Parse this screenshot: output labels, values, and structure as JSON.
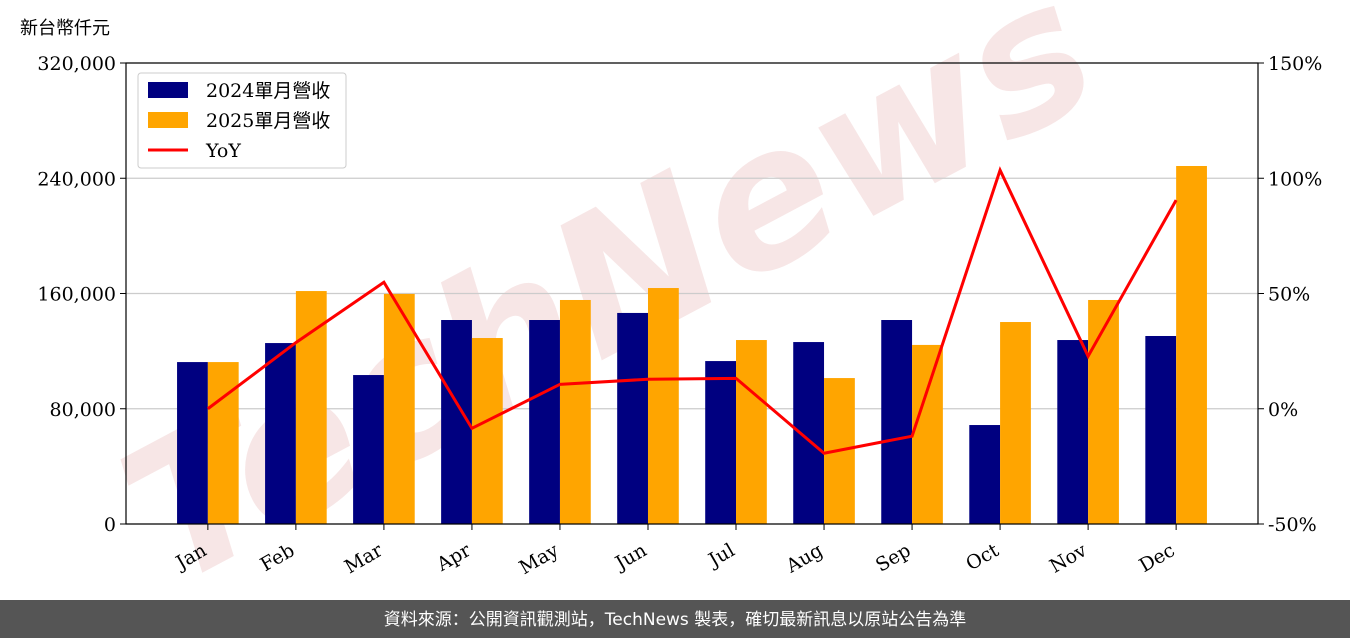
{
  "chart_data": {
    "type": "bar_line",
    "y_label": "新台幣仟元",
    "categories": [
      "Jan",
      "Feb",
      "Mar",
      "Apr",
      "May",
      "Jun",
      "Jul",
      "Aug",
      "Sep",
      "Oct",
      "Nov",
      "Dec"
    ],
    "series": [
      {
        "name": "2024單月營收",
        "color": "#000080",
        "type": "bar",
        "values": [
          112400,
          125600,
          103400,
          141600,
          141600,
          146500,
          113100,
          126300,
          141600,
          68700,
          127700,
          130500
        ]
      },
      {
        "name": "2025單月營收",
        "color": "#ffa500",
        "type": "bar",
        "values": [
          112400,
          161700,
          159700,
          129100,
          155500,
          163800,
          127700,
          101300,
          124300,
          140200,
          155500,
          248500
        ]
      },
      {
        "name": "YoY",
        "color": "#ff0000",
        "type": "line",
        "axis": "y2",
        "values": [
          0,
          28.7,
          54.9,
          -8.5,
          10.6,
          12.8,
          13.2,
          -19.3,
          -11.9,
          103.5,
          22.8,
          90.5
        ]
      }
    ],
    "ylim": [
      0,
      320000
    ],
    "yticks": [
      0,
      {
        "value": 80000,
        "label": "80,000"
      },
      {
        "value": 160000,
        "label": "160,000"
      },
      {
        "value": 240000,
        "label": "240,000"
      },
      {
        "value": 320000,
        "label": "320,000"
      }
    ],
    "y2lim": [
      -50,
      150
    ],
    "y2ticks": [
      {
        "value": -50,
        "label": "-50%"
      },
      {
        "value": 0,
        "label": "0%"
      },
      {
        "value": 50,
        "label": "50%"
      },
      {
        "value": 100,
        "label": "100%"
      },
      {
        "value": 150,
        "label": "150%"
      }
    ],
    "grid": true,
    "legend": "upper left",
    "watermark": "TechNews",
    "footer": "資料來源：公開資訊觀測站，TechNews 製表，確切最新訊息以原站公告為準"
  }
}
